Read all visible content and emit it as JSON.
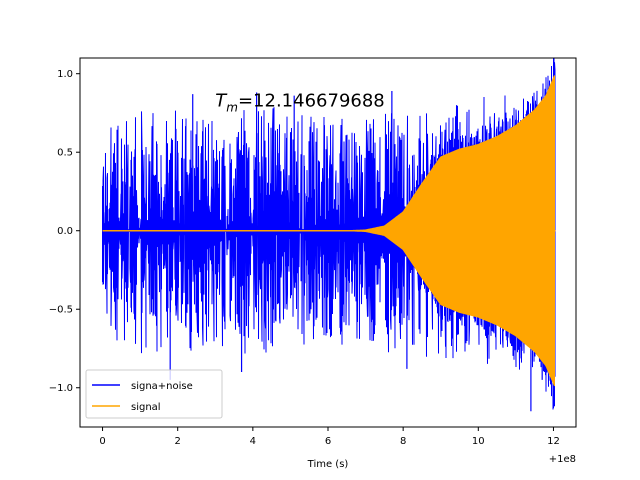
{
  "chart_data": {
    "type": "line",
    "title": "",
    "xlabel": "Time (s)",
    "ylabel": "",
    "x_offset_label": "+1e8",
    "xlim": [
      -0.6,
      12.6
    ],
    "ylim": [
      -1.25,
      1.1
    ],
    "xticks": [
      0,
      2,
      4,
      6,
      8,
      10,
      12
    ],
    "xtick_labels": [
      "0",
      "2",
      "4",
      "6",
      "8",
      "10",
      "12"
    ],
    "yticks": [
      -1.0,
      -0.5,
      0.0,
      0.5,
      1.0
    ],
    "ytick_labels": [
      "−1.0",
      "−0.5",
      "0.0",
      "0.5",
      "1.0"
    ],
    "annotation": {
      "prefix": "T",
      "subscript": "m",
      "value": "=12.146679688",
      "x": 3.0,
      "y": 0.83
    },
    "legend_position": "lower-left",
    "series": [
      {
        "name": "signa+noise",
        "color": "#0000ff",
        "x_range": [
          0,
          12.05
        ],
        "noise_envelope": [
          [
            0,
            0.7
          ],
          [
            0.5,
            0.75
          ],
          [
            1,
            0.8
          ],
          [
            2,
            0.78
          ],
          [
            3,
            0.75
          ],
          [
            4,
            0.8
          ],
          [
            5,
            0.78
          ],
          [
            6,
            0.72
          ],
          [
            7,
            0.75
          ],
          [
            8,
            0.8
          ],
          [
            9,
            0.82
          ],
          [
            10,
            0.85
          ],
          [
            11,
            0.9
          ],
          [
            12,
            0.95
          ]
        ],
        "extreme_spikes": [
          [
            1.8,
            -0.95
          ],
          [
            2.4,
            0.87
          ],
          [
            4.1,
            0.88
          ],
          [
            5.1,
            0.86
          ],
          [
            7.7,
            0.89
          ],
          [
            11.4,
            -1.15
          ],
          [
            11.7,
            -0.95
          ],
          [
            3.7,
            -0.9
          ],
          [
            8.1,
            -0.88
          ]
        ]
      },
      {
        "name": "signal",
        "color": "#ffa500",
        "x_range": [
          0,
          12.05
        ],
        "envelope": [
          [
            0,
            0.0
          ],
          [
            6.5,
            0.0
          ],
          [
            7.0,
            0.005
          ],
          [
            7.5,
            0.03
          ],
          [
            8.0,
            0.12
          ],
          [
            8.5,
            0.3
          ],
          [
            9.0,
            0.47
          ],
          [
            9.5,
            0.52
          ],
          [
            10.0,
            0.55
          ],
          [
            10.5,
            0.6
          ],
          [
            11.0,
            0.67
          ],
          [
            11.5,
            0.77
          ],
          [
            11.8,
            0.86
          ],
          [
            12.05,
            1.0
          ]
        ]
      }
    ]
  }
}
